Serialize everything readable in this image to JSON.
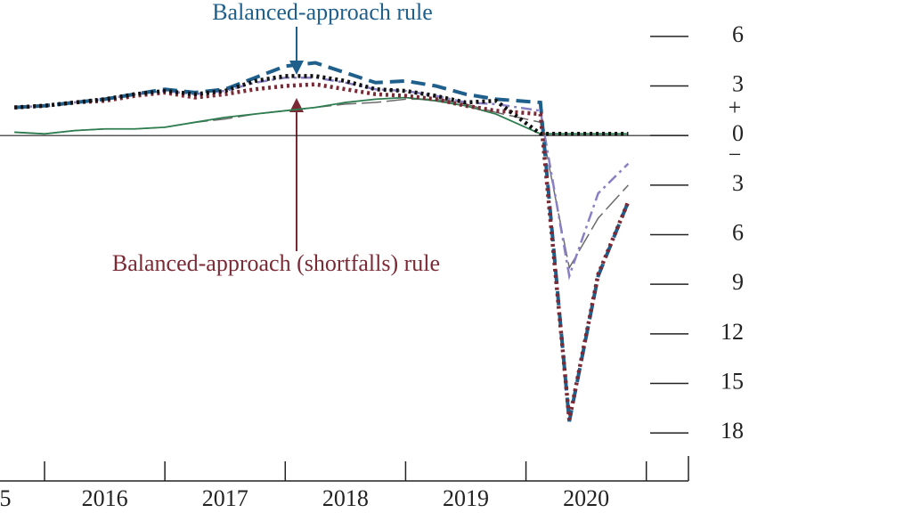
{
  "chart_data": {
    "type": "line",
    "annotations": [
      "Balanced-approach rule",
      "Balanced-approach (shortfalls) rule"
    ],
    "sign_labels": [
      "+",
      "−"
    ],
    "x": [
      2015.75,
      2016,
      2016.25,
      2016.5,
      2016.75,
      2017,
      2017.25,
      2017.5,
      2017.75,
      2018,
      2018.25,
      2018.5,
      2018.75,
      2019,
      2019.25,
      2019.5,
      2019.75,
      2020.12,
      2020.36,
      2020.6,
      2020.85
    ],
    "series": [
      {
        "color": "#6b6b6b",
        "style": "longdash",
        "values": [
          0.2,
          0.1,
          0.3,
          0.4,
          0.4,
          0.5,
          0.8,
          1.0,
          1.3,
          1.5,
          1.7,
          1.9,
          2.0,
          2.2,
          2.2,
          1.9,
          1.4,
          0.8,
          -8.0,
          -5.0,
          -3.0
        ]
      },
      {
        "color": "#2e7d4f",
        "style": "solid",
        "values": [
          0.2,
          0.1,
          0.3,
          0.4,
          0.4,
          0.5,
          0.8,
          1.1,
          1.3,
          1.5,
          1.7,
          2.0,
          2.2,
          2.3,
          2.1,
          1.8,
          1.3,
          0.1,
          0.1,
          0.1,
          0.1
        ]
      },
      {
        "color": "#8a7fc4",
        "style": "dashdot",
        "values": [
          1.7,
          1.8,
          2.0,
          2.2,
          2.5,
          2.7,
          2.5,
          2.7,
          3.2,
          3.5,
          3.5,
          3.2,
          2.8,
          2.7,
          2.4,
          2.0,
          1.9,
          1.5,
          -8.5,
          -3.5,
          -1.7
        ]
      },
      {
        "color": "#1f5f8b",
        "style": "dash",
        "values": [
          1.7,
          1.8,
          2.0,
          2.2,
          2.5,
          2.8,
          2.6,
          2.8,
          3.5,
          4.2,
          4.4,
          3.8,
          3.2,
          3.3,
          3.0,
          2.5,
          2.2,
          2.0,
          -17.3,
          -8.5,
          -4.0
        ]
      },
      {
        "color": "#7b2a35",
        "style": "dot",
        "values": [
          1.7,
          1.8,
          2.0,
          2.1,
          2.4,
          2.6,
          2.3,
          2.5,
          2.8,
          3.0,
          3.1,
          2.8,
          2.5,
          2.4,
          2.2,
          1.8,
          1.5,
          1.3,
          -17.2,
          -8.4,
          -4.0
        ]
      },
      {
        "color": "#111111",
        "style": "dot",
        "values": [
          1.7,
          1.8,
          2.0,
          2.2,
          2.5,
          2.7,
          2.5,
          2.7,
          3.3,
          3.6,
          3.6,
          3.3,
          2.8,
          2.7,
          2.4,
          2.0,
          2.1,
          0.1,
          0.1,
          0.1,
          0.1
        ]
      }
    ],
    "xlim": [
      2015.63,
      2021.35
    ],
    "xticks": [
      2016,
      2017,
      2018,
      2019,
      2020,
      2021
    ],
    "year_labels": [
      {
        "value": 2015.5,
        "label": "5"
      },
      {
        "value": 2016.5,
        "label": "2016"
      },
      {
        "value": 2017.5,
        "label": "2017"
      },
      {
        "value": 2018.5,
        "label": "2018"
      },
      {
        "value": 2019.5,
        "label": "2019"
      },
      {
        "value": 2020.5,
        "label": "2020"
      }
    ],
    "ylim": [
      -20.9,
      8.2
    ],
    "yticks": [
      6,
      3,
      0,
      {
        "value": -3,
        "label": "3"
      },
      {
        "value": -6,
        "label": "6"
      },
      {
        "value": -9,
        "label": "9"
      },
      {
        "value": -12,
        "label": "12"
      },
      {
        "value": -15,
        "label": "15"
      },
      {
        "value": -18,
        "label": "18"
      }
    ]
  }
}
